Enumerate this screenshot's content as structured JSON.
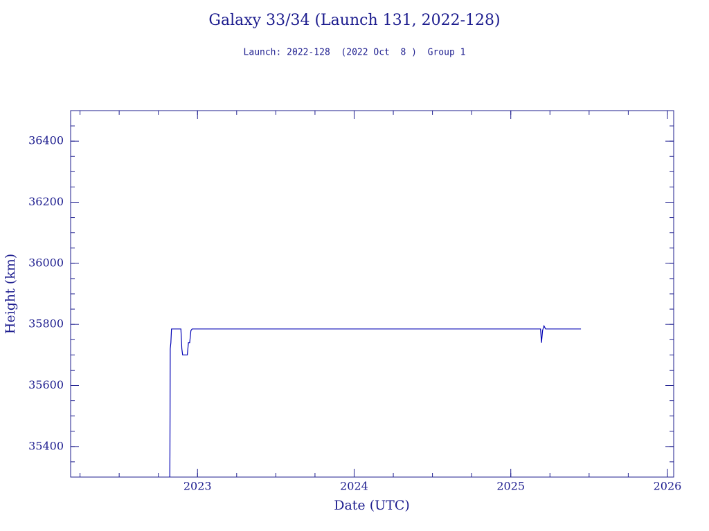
{
  "chart_data": {
    "type": "line",
    "title": "Galaxy 33/34 (Launch 131, 2022-128)",
    "subtitle": "Launch: 2022-128  (2022 Oct  8 )  Group 1",
    "x_label": "Date (UTC)",
    "y_label": "Height (km)",
    "x": [
      2022.823,
      2022.824,
      2022.826,
      2022.83,
      2022.834,
      2022.894,
      2022.9,
      2022.905,
      2022.935,
      2022.942,
      2022.95,
      2022.958,
      2022.966,
      2025.19,
      2025.196,
      2025.203,
      2025.212,
      2025.222,
      2025.448
    ],
    "series": [
      {
        "name": "Height",
        "color": "#0000b4",
        "values": [
          35300,
          35370,
          35720,
          35740,
          35785,
          35785,
          35720,
          35700,
          35700,
          35740,
          35740,
          35780,
          35785,
          35785,
          35740,
          35780,
          35795,
          35785,
          35785
        ]
      }
    ],
    "xlim": [
      2022.19,
      2026.04
    ],
    "xticks": [
      2023,
      2024,
      2025,
      2026
    ],
    "ylim": [
      35300,
      36500
    ],
    "yticks": [
      35400,
      35600,
      35800,
      36000,
      36200,
      36400
    ],
    "axis_color": "#1c1c8e"
  }
}
